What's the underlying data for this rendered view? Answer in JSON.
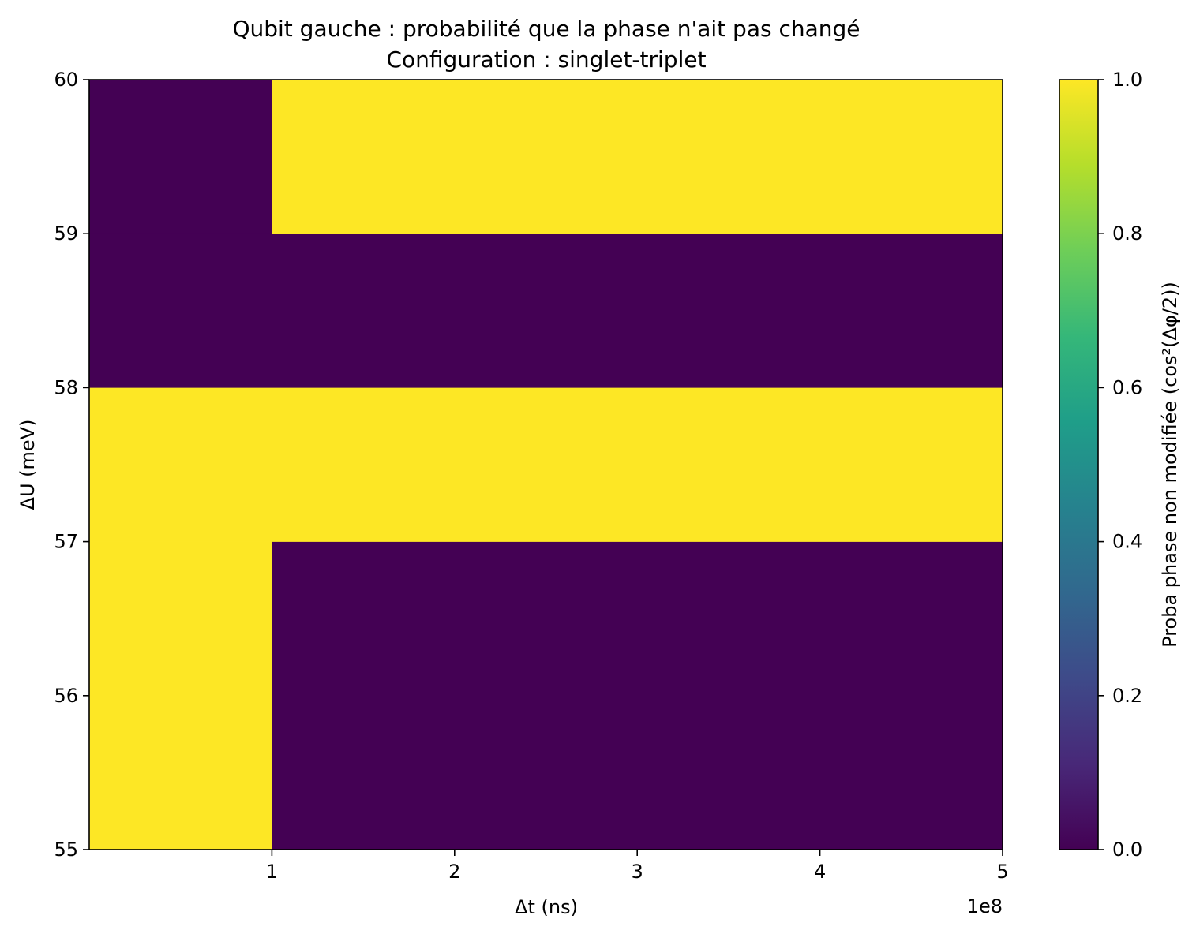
{
  "chart_data": {
    "type": "heatmap",
    "title": "Qubit gauche : probabilité que la phase n'ait pas changé",
    "subtitle": "Configuration : singlet-triplet",
    "xlabel": "Δt (ns)",
    "ylabel": "ΔU (meV)",
    "x_offset_label": "1e8",
    "x_scale": 100000000,
    "xlim": [
      0,
      500000000
    ],
    "ylim": [
      55,
      60
    ],
    "x_ticks": [
      100000000,
      200000000,
      300000000,
      400000000,
      500000000
    ],
    "x_tick_labels": [
      "1",
      "2",
      "3",
      "4",
      "5"
    ],
    "y_ticks": [
      55,
      56,
      57,
      58,
      59,
      60
    ],
    "y_tick_labels": [
      "55",
      "56",
      "57",
      "58",
      "59",
      "60"
    ],
    "x_edges": [
      0,
      100000000,
      500000000
    ],
    "y_edges": [
      55,
      57,
      58,
      59,
      60
    ],
    "values": [
      [
        1,
        0
      ],
      [
        1,
        1
      ],
      [
        0,
        0
      ],
      [
        0,
        1
      ]
    ],
    "colormap": "viridis",
    "colorbar": {
      "label": "Proba phase non modifiée  (cos²(Δφ/2))",
      "range": [
        0,
        1
      ],
      "ticks": [
        0.0,
        0.2,
        0.4,
        0.6,
        0.8,
        1.0
      ],
      "tick_labels": [
        "0.0",
        "0.2",
        "0.4",
        "0.6",
        "0.8",
        "1.0"
      ],
      "stops": [
        "#440154",
        "#482878",
        "#3e4a89",
        "#31688e",
        "#26828e",
        "#1f9e89",
        "#35b779",
        "#6ece58",
        "#b5de2b",
        "#fde725"
      ]
    },
    "grid": false
  }
}
